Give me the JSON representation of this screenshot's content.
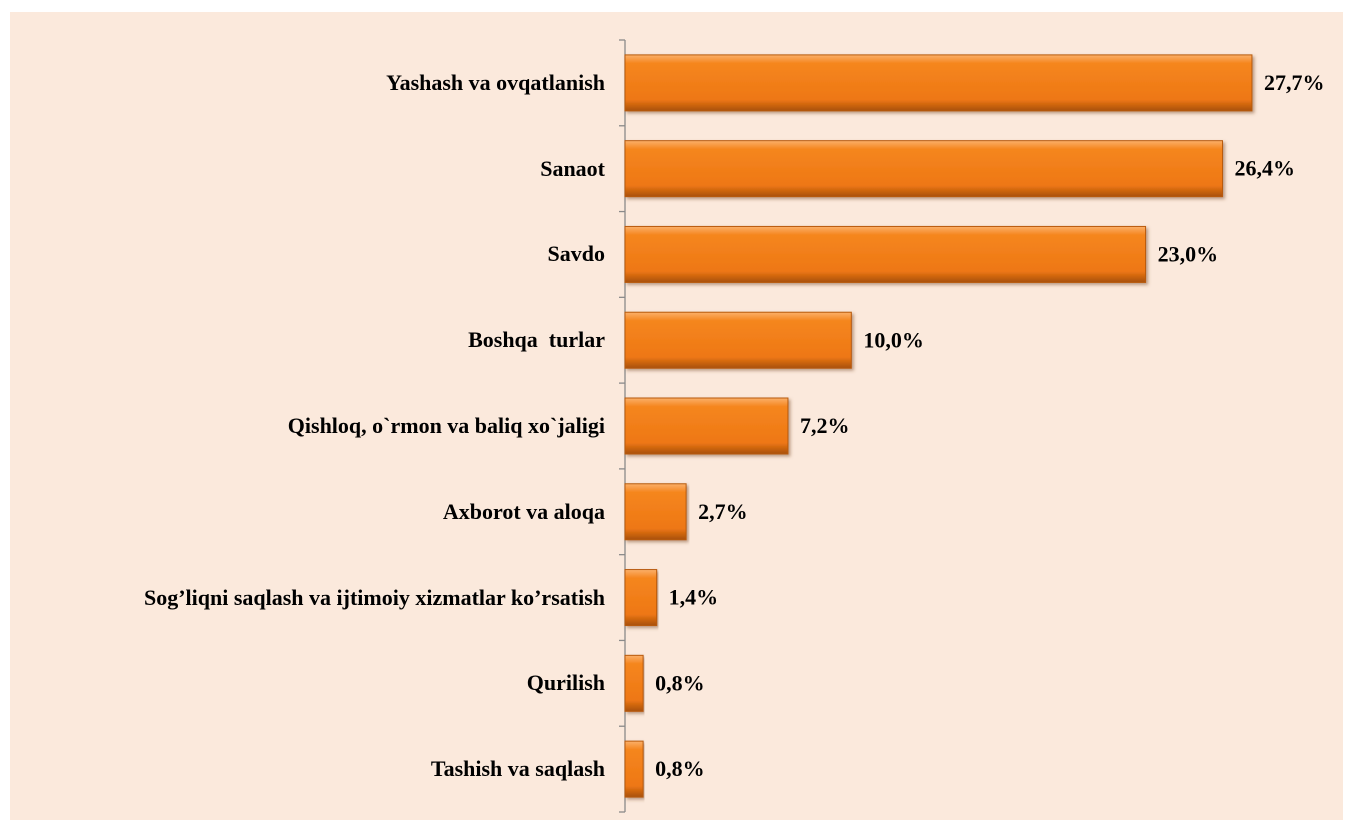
{
  "chart_data": {
    "type": "bar",
    "orientation": "horizontal",
    "categories": [
      "Yashash va ovqatlanish",
      "Sanaot",
      "Savdo",
      "Boshqa  turlar",
      "Qishloq, o`rmon va baliq xo`jaligi",
      "Axborot va aloqa",
      "Sog’liqni saqlash va ijtimoiy xizmatlar ko’rsatish",
      "Qurilish",
      "Tashish va saqlash"
    ],
    "values": [
      27.7,
      26.4,
      23.0,
      10.0,
      7.2,
      2.7,
      1.4,
      0.8,
      0.8
    ],
    "value_labels": [
      "27,7%",
      "26,4%",
      "23,0%",
      "10,0%",
      "7,2%",
      "2,7%",
      "1,4%",
      "0,8%",
      "0,8%"
    ],
    "color": "#f07c1a",
    "xlim": [
      0,
      30
    ]
  }
}
